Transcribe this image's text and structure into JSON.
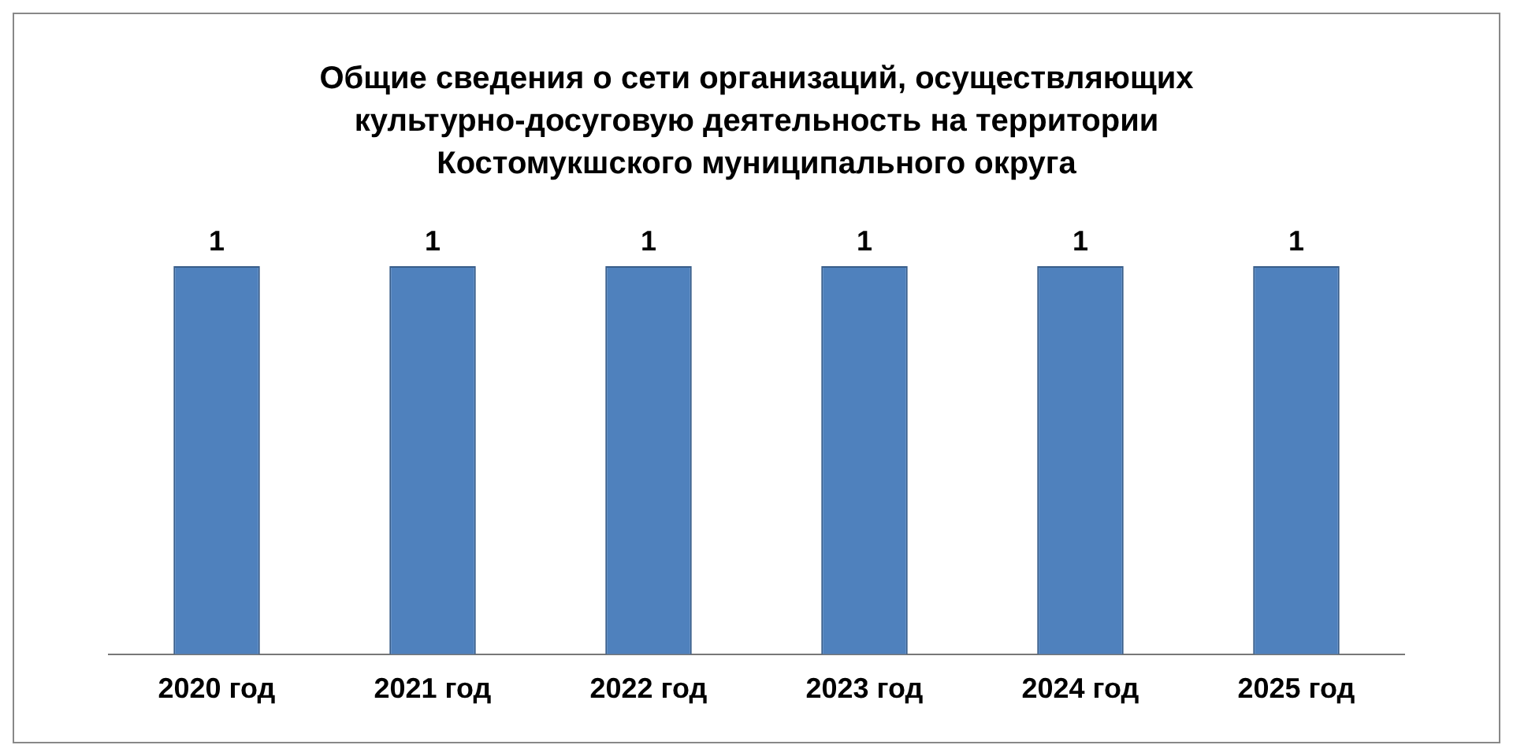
{
  "chart_data": {
    "type": "bar",
    "title": "Общие сведения о сети организаций, осуществляющих культурно-досуговую деятельность на территории Костомукшского муниципального округа",
    "categories": [
      "2020 год",
      "2021 год",
      "2022 год",
      "2023 год",
      "2024 год",
      "2025 год"
    ],
    "values": [
      1,
      1,
      1,
      1,
      1,
      1
    ],
    "color": "#4f81bd",
    "tick_labels": "x",
    "data_labels": true,
    "grid": false,
    "legend": false
  }
}
